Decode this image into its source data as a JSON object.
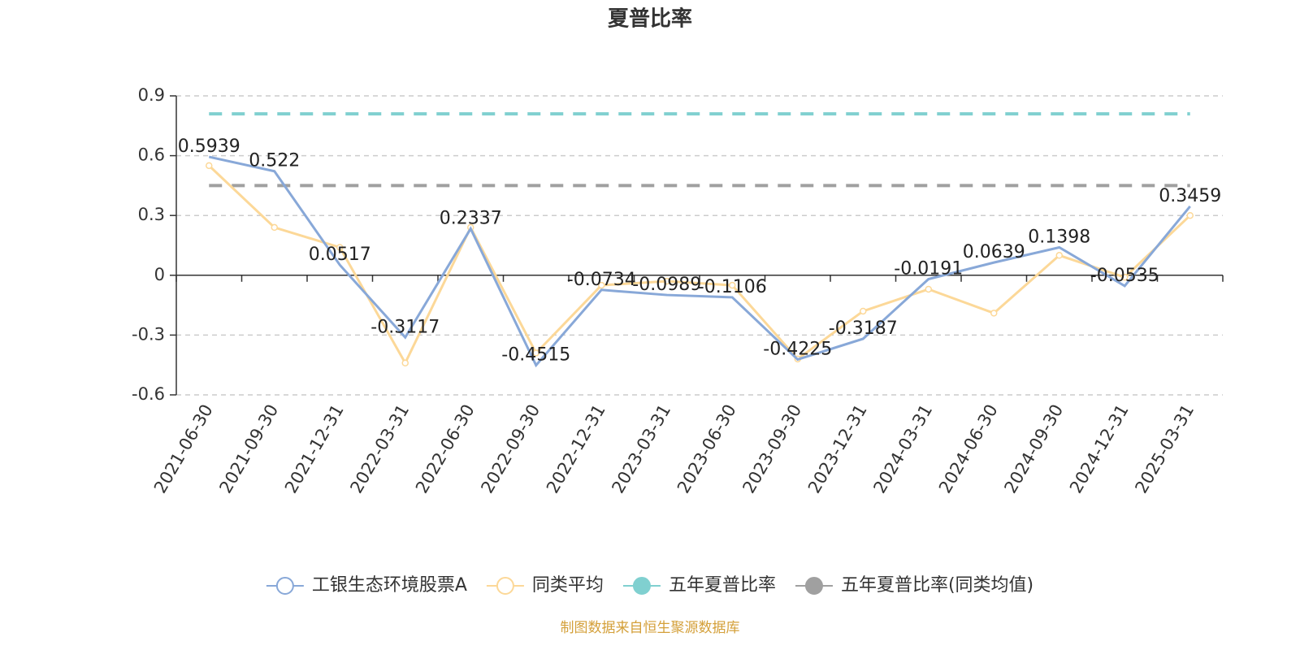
{
  "chart_data": {
    "type": "line",
    "title": "夏普比率",
    "categories": [
      "2021-06-30",
      "2021-09-30",
      "2021-12-31",
      "2022-03-31",
      "2022-06-30",
      "2022-09-30",
      "2022-12-31",
      "2023-03-31",
      "2023-06-30",
      "2023-09-30",
      "2023-12-31",
      "2024-03-31",
      "2024-06-30",
      "2024-09-30",
      "2024-12-31",
      "2025-03-31"
    ],
    "series": [
      {
        "name": "工银生态环境股票A",
        "color": "#88a8d8",
        "values": [
          0.5939,
          0.522,
          0.0517,
          -0.3117,
          0.2337,
          -0.4515,
          -0.0734,
          -0.0989,
          -0.1106,
          -0.4225,
          -0.3187,
          -0.0191,
          0.0639,
          0.1398,
          -0.0535,
          0.3459
        ]
      },
      {
        "name": "同类平均",
        "color": "#fcd898",
        "values": [
          0.55,
          0.24,
          0.14,
          -0.44,
          0.24,
          -0.39,
          -0.05,
          -0.03,
          -0.05,
          -0.42,
          -0.18,
          -0.07,
          -0.19,
          0.1,
          -0.01,
          0.3
        ]
      },
      {
        "name": "五年夏普比率",
        "color": "#80d0d0",
        "value": 0.81
      },
      {
        "name": "五年夏普比率(同类均值)",
        "color": "#a0a0a0",
        "value": 0.45
      }
    ],
    "ylim": [
      -0.6,
      0.9
    ],
    "yticks": [
      0.9,
      0.6,
      0.3,
      0,
      -0.3,
      -0.6
    ],
    "grid": true,
    "footer": "制图数据来自恒生聚源数据库"
  }
}
